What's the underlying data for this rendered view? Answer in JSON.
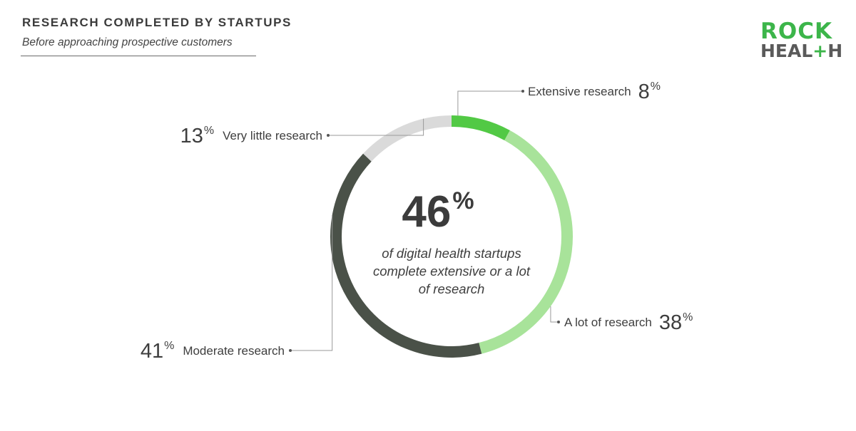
{
  "header": {
    "title": "RESEARCH COMPLETED BY STARTUPS",
    "subtitle": "Before approaching prospective customers"
  },
  "logo": {
    "line1": "ROCK",
    "line2_a": "HEAL",
    "line2_plus": "+",
    "line2_b": "H"
  },
  "chart_data": {
    "type": "pie",
    "donut": true,
    "title": "RESEARCH COMPLETED BY STARTUPS",
    "subtitle": "Before approaching prospective customers",
    "unit": "%",
    "slices": [
      {
        "label": "Extensive research",
        "value": 8,
        "color": "#52c945"
      },
      {
        "label": "A lot of research",
        "value": 38,
        "color": "#a8e39a"
      },
      {
        "label": "Moderate research",
        "value": 41,
        "color": "#4a5148"
      },
      {
        "label": "Very little research",
        "value": 13,
        "color": "#dadada"
      }
    ],
    "center": {
      "value": "46",
      "unit": "%",
      "caption": [
        "of digital health startups",
        "complete extensive or a lot",
        "of research"
      ]
    }
  }
}
